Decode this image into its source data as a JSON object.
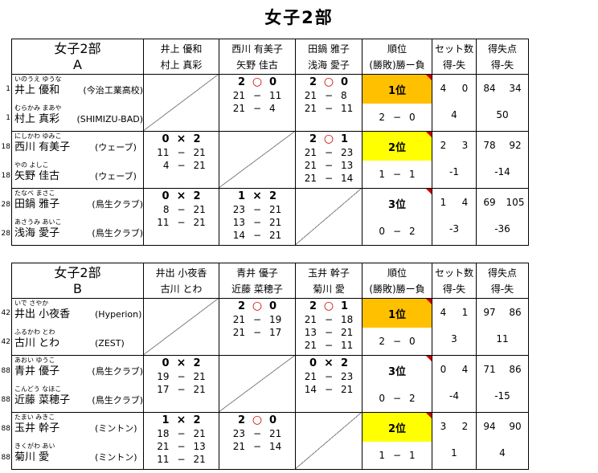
{
  "title": "女子2部",
  "ui": {
    "dash": "−"
  },
  "colors": {
    "rank1_bg": "#FFC000",
    "rank2_bg": "#FFFF00",
    "rank3_bg": "#FFFFFF",
    "win_mark": "#CC0000",
    "comment_flag": "#CC0000",
    "grid_line": "#000000",
    "diagonal_line": "#808080"
  },
  "headers": {
    "rank": {
      "line1": "順位",
      "line2": "(勝敗)勝ー負"
    },
    "sets": {
      "line1": "セット数",
      "line2": "得-失"
    },
    "points": {
      "line1": "得失点",
      "line2": "得-失"
    }
  },
  "groups": [
    {
      "division": "女子2部",
      "letter": "A",
      "teams": [
        {
          "line1": "井上 優和",
          "line2": "村上 真彩"
        },
        {
          "line1": "西川 有美子",
          "line2": "矢野 佳古"
        },
        {
          "line1": "田鍋 雅子",
          "line2": "浅海 愛子"
        }
      ],
      "rows": [
        {
          "players": [
            {
              "no": "1",
              "kana": "いのうえ ゆうな",
              "name": "井上 優和",
              "club": "(今治工業高校)"
            },
            {
              "no": "1",
              "kana": "むらかみ まあや",
              "name": "村上 真彩",
              "club": "(SHIMIZU-BAD)"
            }
          ],
          "matches": [
            {
              "self": "1"
            },
            {
              "result": {
                "left": "2",
                "mark": "○",
                "right": "0",
                "won": "1"
              },
              "games": [
                {
                  "a": "21",
                  "d": "−",
                  "b": "11"
                },
                {
                  "a": "21",
                  "d": "−",
                  "b": "4"
                }
              ]
            },
            {
              "result": {
                "left": "2",
                "mark": "○",
                "right": "0",
                "won": "1"
              },
              "games": [
                {
                  "a": "21",
                  "d": "−",
                  "b": "8"
                },
                {
                  "a": "21",
                  "d": "−",
                  "b": "11"
                }
              ]
            }
          ],
          "rank": {
            "label": "1位",
            "n": "1",
            "wins": "2",
            "losses": "0"
          },
          "sets": {
            "won": "4",
            "lost": "0",
            "diff": "4"
          },
          "points": {
            "won": "84",
            "lost": "34",
            "diff": "50"
          }
        },
        {
          "players": [
            {
              "no": "18",
              "kana": "にしかわ ゆみこ",
              "name": "西川 有美子",
              "club": "(ウェーブ)"
            },
            {
              "no": "18",
              "kana": "やの よしこ",
              "name": "矢野 佳古",
              "club": "(ウェーブ)"
            }
          ],
          "matches": [
            {
              "result": {
                "left": "0",
                "mark": "×",
                "right": "2",
                "won": "0"
              },
              "games": [
                {
                  "a": "11",
                  "d": "−",
                  "b": "21"
                },
                {
                  "a": "4",
                  "d": "−",
                  "b": "21"
                }
              ]
            },
            {
              "self": "1"
            },
            {
              "result": {
                "left": "2",
                "mark": "○",
                "right": "1",
                "won": "1"
              },
              "games": [
                {
                  "a": "21",
                  "d": "−",
                  "b": "23"
                },
                {
                  "a": "21",
                  "d": "−",
                  "b": "13"
                },
                {
                  "a": "21",
                  "d": "−",
                  "b": "14"
                }
              ]
            }
          ],
          "rank": {
            "label": "2位",
            "n": "2",
            "wins": "1",
            "losses": "1"
          },
          "sets": {
            "won": "2",
            "lost": "3",
            "diff": "-1"
          },
          "points": {
            "won": "78",
            "lost": "92",
            "diff": "-14"
          }
        },
        {
          "players": [
            {
              "no": "28",
              "kana": "たなべ まさこ",
              "name": "田鍋 雅子",
              "club": "(鳥生クラブ)"
            },
            {
              "no": "28",
              "kana": "あさうみ あいこ",
              "name": "浅海 愛子",
              "club": "(鳥生クラブ)"
            }
          ],
          "matches": [
            {
              "result": {
                "left": "0",
                "mark": "×",
                "right": "2",
                "won": "0"
              },
              "games": [
                {
                  "a": "8",
                  "d": "−",
                  "b": "21"
                },
                {
                  "a": "11",
                  "d": "−",
                  "b": "21"
                }
              ]
            },
            {
              "result": {
                "left": "1",
                "mark": "×",
                "right": "2",
                "won": "0"
              },
              "games": [
                {
                  "a": "23",
                  "d": "−",
                  "b": "21"
                },
                {
                  "a": "13",
                  "d": "−",
                  "b": "21"
                },
                {
                  "a": "14",
                  "d": "−",
                  "b": "21"
                }
              ]
            },
            {
              "self": "1"
            }
          ],
          "rank": {
            "label": "3位",
            "n": "3",
            "wins": "0",
            "losses": "2"
          },
          "sets": {
            "won": "1",
            "lost": "4",
            "diff": "-3"
          },
          "points": {
            "won": "69",
            "lost": "105",
            "diff": "-36"
          }
        }
      ]
    },
    {
      "division": "女子2部",
      "letter": "B",
      "teams": [
        {
          "line1": "井出 小夜香",
          "line2": "古川 とわ"
        },
        {
          "line1": "青井 優子",
          "line2": "近藤 菜穂子"
        },
        {
          "line1": "玉井 幹子",
          "line2": "菊川 愛"
        }
      ],
      "rows": [
        {
          "players": [
            {
              "no": "42",
              "kana": "いで さやか",
              "name": "井出 小夜香",
              "club": "(Hyperion)"
            },
            {
              "no": "42",
              "kana": "ふるかわ とわ",
              "name": "古川 とわ",
              "club": "(ZEST)"
            }
          ],
          "matches": [
            {
              "self": "1"
            },
            {
              "result": {
                "left": "2",
                "mark": "○",
                "right": "0",
                "won": "1"
              },
              "games": [
                {
                  "a": "21",
                  "d": "−",
                  "b": "19"
                },
                {
                  "a": "21",
                  "d": "−",
                  "b": "17"
                }
              ]
            },
            {
              "result": {
                "left": "2",
                "mark": "○",
                "right": "1",
                "won": "1"
              },
              "games": [
                {
                  "a": "21",
                  "d": "−",
                  "b": "18"
                },
                {
                  "a": "13",
                  "d": "−",
                  "b": "21"
                },
                {
                  "a": "21",
                  "d": "−",
                  "b": "11"
                }
              ]
            }
          ],
          "rank": {
            "label": "1位",
            "n": "1",
            "wins": "2",
            "losses": "0"
          },
          "sets": {
            "won": "4",
            "lost": "1",
            "diff": "3"
          },
          "points": {
            "won": "97",
            "lost": "86",
            "diff": "11"
          }
        },
        {
          "players": [
            {
              "no": "88",
              "kana": "あおい ゆうこ",
              "name": "青井 優子",
              "club": "(鳥生クラブ)"
            },
            {
              "no": "88",
              "kana": "こんどう なほこ",
              "name": "近藤 菜穂子",
              "club": "(鳥生クラブ)"
            }
          ],
          "matches": [
            {
              "result": {
                "left": "0",
                "mark": "×",
                "right": "2",
                "won": "0"
              },
              "games": [
                {
                  "a": "19",
                  "d": "−",
                  "b": "21"
                },
                {
                  "a": "17",
                  "d": "−",
                  "b": "21"
                }
              ]
            },
            {
              "self": "1"
            },
            {
              "result": {
                "left": "0",
                "mark": "×",
                "right": "2",
                "won": "0"
              },
              "games": [
                {
                  "a": "21",
                  "d": "−",
                  "b": "23"
                },
                {
                  "a": "14",
                  "d": "−",
                  "b": "21"
                }
              ]
            }
          ],
          "rank": {
            "label": "3位",
            "n": "3",
            "wins": "0",
            "losses": "2"
          },
          "sets": {
            "won": "0",
            "lost": "4",
            "diff": "-4"
          },
          "points": {
            "won": "71",
            "lost": "86",
            "diff": "-15"
          }
        },
        {
          "players": [
            {
              "no": "88",
              "kana": "たまい みきこ",
              "name": "玉井 幹子",
              "club": "(ミントン)"
            },
            {
              "no": "88",
              "kana": "きくがわ あい",
              "name": "菊川 愛",
              "club": "(ミントン)"
            }
          ],
          "matches": [
            {
              "result": {
                "left": "1",
                "mark": "×",
                "right": "2",
                "won": "0"
              },
              "games": [
                {
                  "a": "18",
                  "d": "−",
                  "b": "21"
                },
                {
                  "a": "21",
                  "d": "−",
                  "b": "13"
                },
                {
                  "a": "11",
                  "d": "−",
                  "b": "21"
                }
              ]
            },
            {
              "result": {
                "left": "2",
                "mark": "○",
                "right": "0",
                "won": "1"
              },
              "games": [
                {
                  "a": "23",
                  "d": "−",
                  "b": "21"
                },
                {
                  "a": "21",
                  "d": "−",
                  "b": "14"
                }
              ]
            },
            {
              "self": "1"
            }
          ],
          "rank": {
            "label": "2位",
            "n": "2",
            "wins": "1",
            "losses": "1"
          },
          "sets": {
            "won": "3",
            "lost": "2",
            "diff": "1"
          },
          "points": {
            "won": "94",
            "lost": "90",
            "diff": "4"
          }
        }
      ]
    }
  ]
}
